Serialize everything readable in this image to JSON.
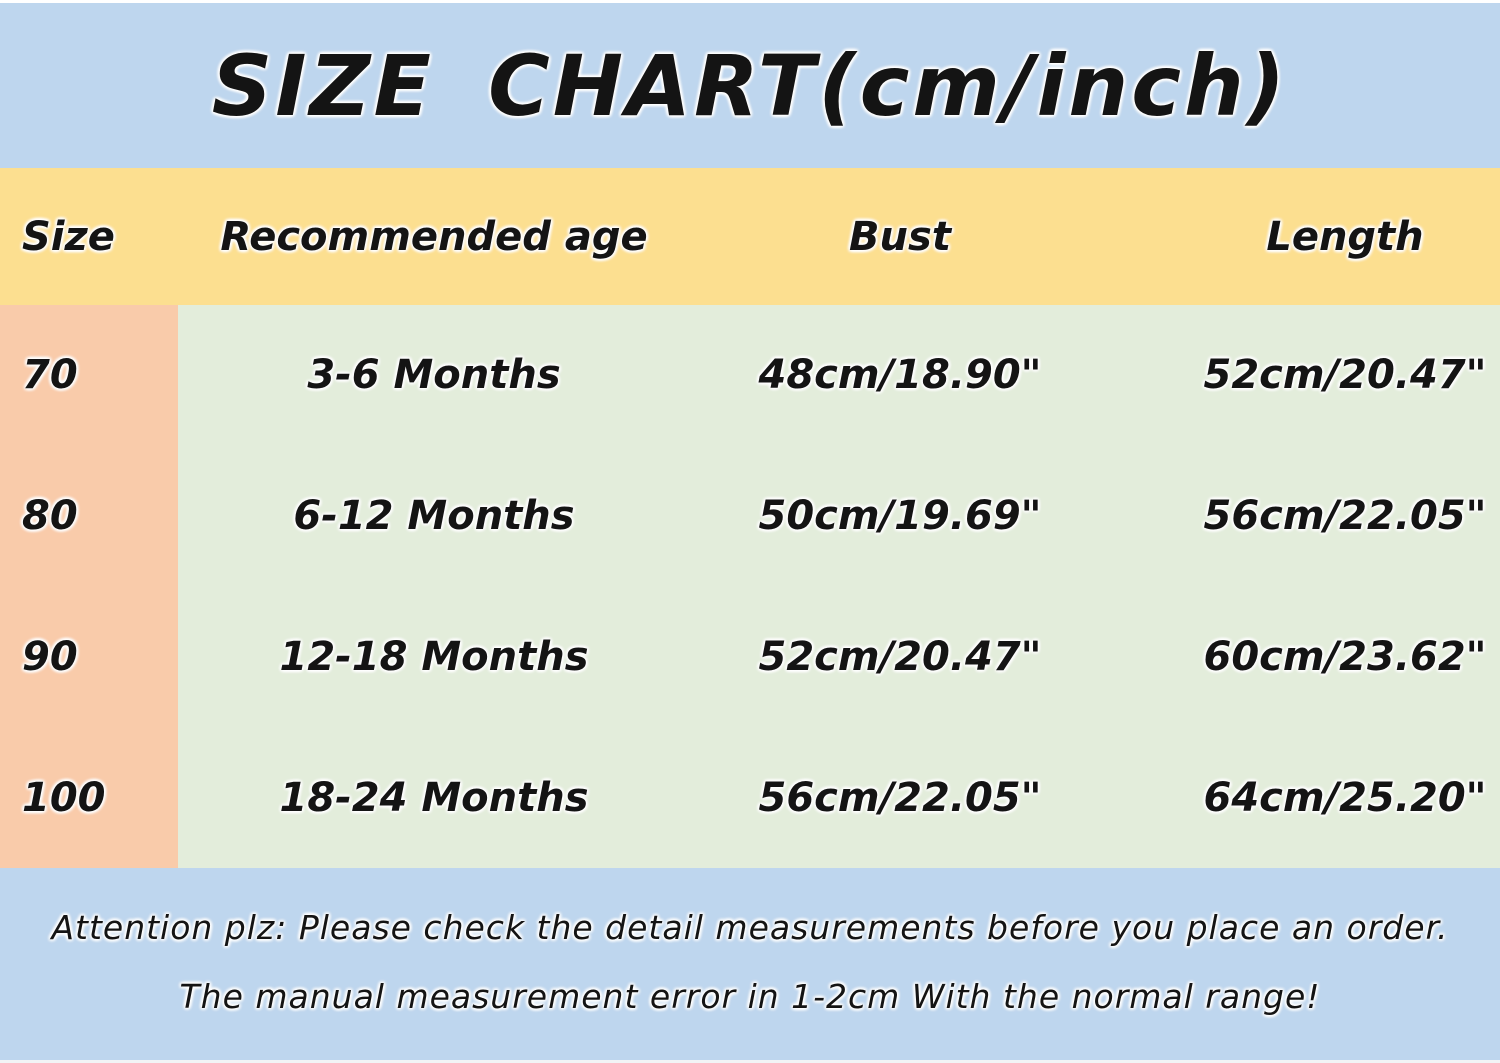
{
  "title": "SIZE CHART(cm/inch)",
  "table": {
    "headers": [
      "Size",
      "Recommended age",
      "Bust",
      "Length"
    ],
    "rows": [
      {
        "size": "70",
        "age": "3-6 Months",
        "bust": "48cm/18.90\"",
        "length": "52cm/20.47\""
      },
      {
        "size": "80",
        "age": "6-12 Months",
        "bust": "50cm/19.69\"",
        "length": "56cm/22.05\""
      },
      {
        "size": "90",
        "age": "12-18 Months",
        "bust": "52cm/20.47\"",
        "length": "60cm/23.62\""
      },
      {
        "size": "100",
        "age": "18-24 Months",
        "bust": "56cm/22.05\"",
        "length": "64cm/25.20\""
      }
    ]
  },
  "footer": {
    "line1": "Attention plz:  Please check the detail measurements before you place an order.",
    "line2": "The manual measurement error in 1-2cm With the normal range!"
  },
  "colors": {
    "banner_bg": "#bed6ee",
    "header_row_bg": "#fcdf90",
    "size_column_bg": "#f9cbaa",
    "body_row_bg": "#e3eddb",
    "footer_bg": "#bed6ee",
    "text": "#141414"
  }
}
